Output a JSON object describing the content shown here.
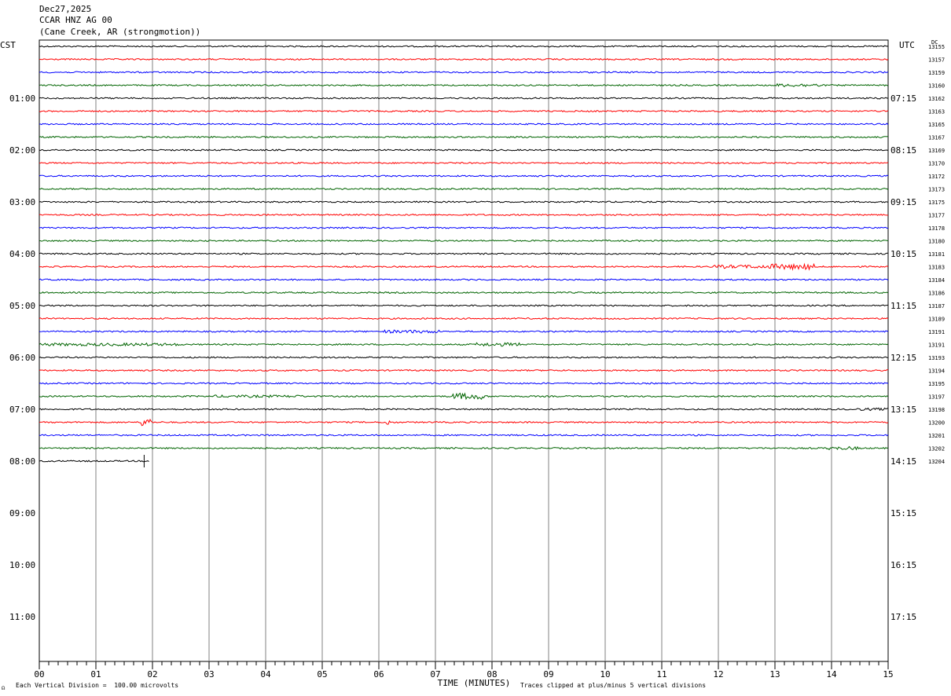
{
  "header": {
    "date": "Dec27,2025",
    "station": "CCAR HNZ AG 00",
    "location": "(Cane Creek, AR (strongmotion))"
  },
  "chart_data": {
    "type": "line",
    "left_zone": "CST",
    "right_zone": "UTC",
    "dc_label": "DC",
    "x": {
      "label": "TIME (MINUTES)",
      "range": [
        0,
        15
      ],
      "tick_labels": [
        "00",
        "01",
        "02",
        "03",
        "04",
        "05",
        "06",
        "07",
        "08",
        "09",
        "10",
        "11",
        "12",
        "13",
        "14",
        "15"
      ]
    },
    "left_hour_labels": [
      "01:00",
      "02:00",
      "03:00",
      "04:00",
      "05:00",
      "06:00",
      "07:00",
      "08:00",
      "09:00",
      "10:00",
      "11:00"
    ],
    "right_hour_labels": [
      "07:15",
      "08:15",
      "09:15",
      "10:15",
      "11:15",
      "12:15",
      "13:15",
      "14:15",
      "15:15",
      "16:15",
      "17:15"
    ],
    "trace_colors": [
      "#000000",
      "#ff0000",
      "#0000ff",
      "#006400"
    ],
    "dc_offsets": [
      13155,
      13157,
      13159,
      13160,
      13162,
      13163,
      13165,
      13167,
      13169,
      13170,
      13172,
      13173,
      13175,
      13177,
      13178,
      13180,
      13181,
      13183,
      13184,
      13186,
      13187,
      13189,
      13191,
      13191,
      13193,
      13194,
      13195,
      13197,
      13198,
      13200,
      13201,
      13202,
      13204
    ],
    "last_trace_minutes": 1.95,
    "footer_left": "Each Vertical Division =  100.00 microvolts",
    "footer_right": "Traces clipped at plus/minus 5 vertical divisions"
  }
}
